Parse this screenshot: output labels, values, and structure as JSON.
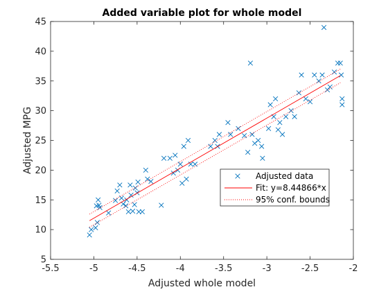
{
  "chart_data": {
    "type": "scatter",
    "title": "Added variable plot for whole model",
    "xlabel": "Adjusted whole model",
    "ylabel": "Adjusted MPG",
    "xlim": [
      -5.5,
      -2
    ],
    "ylim": [
      5,
      45
    ],
    "xticks": [
      -5.5,
      -5,
      -4.5,
      -4,
      -3.5,
      -3,
      -2.5,
      -2
    ],
    "yticks": [
      5,
      10,
      15,
      20,
      25,
      30,
      35,
      40,
      45
    ],
    "xtick_labels": [
      "-5.5",
      "-5",
      "-4.5",
      "-4",
      "-3.5",
      "-3",
      "-2.5",
      "-2"
    ],
    "ytick_labels": [
      "5",
      "10",
      "15",
      "20",
      "25",
      "30",
      "35",
      "40",
      "45"
    ],
    "grid": false,
    "legend_position": "center-right",
    "colors": {
      "data": "#0072BD",
      "fit": "#FF0000",
      "bounds": "#FF0000"
    },
    "series": [
      {
        "name": "Adjusted data",
        "kind": "markers",
        "marker": "x",
        "points": [
          [
            -5.05,
            9.1
          ],
          [
            -5.03,
            10.0
          ],
          [
            -4.98,
            10.3
          ],
          [
            -4.96,
            11.2
          ],
          [
            -4.97,
            14.0
          ],
          [
            -4.95,
            15.0
          ],
          [
            -4.94,
            14.1
          ],
          [
            -4.93,
            13.7
          ],
          [
            -4.83,
            12.8
          ],
          [
            -4.75,
            14.9
          ],
          [
            -4.73,
            16.5
          ],
          [
            -4.7,
            17.5
          ],
          [
            -4.68,
            15.3
          ],
          [
            -4.66,
            14.3
          ],
          [
            -4.63,
            14.0
          ],
          [
            -4.62,
            15.0
          ],
          [
            -4.6,
            13.0
          ],
          [
            -4.58,
            17.5
          ],
          [
            -4.57,
            15.8
          ],
          [
            -4.55,
            13.1
          ],
          [
            -4.53,
            14.2
          ],
          [
            -4.52,
            17.0
          ],
          [
            -4.5,
            16.2
          ],
          [
            -4.49,
            18.0
          ],
          [
            -4.48,
            13.0
          ],
          [
            -4.44,
            13.0
          ],
          [
            -4.4,
            20.0
          ],
          [
            -4.38,
            18.5
          ],
          [
            -4.34,
            18.1
          ],
          [
            -4.22,
            14.1
          ],
          [
            -4.19,
            22.0
          ],
          [
            -4.12,
            22.0
          ],
          [
            -4.08,
            19.5
          ],
          [
            -4.06,
            22.5
          ],
          [
            -4.03,
            20.0
          ],
          [
            -4.0,
            21.0
          ],
          [
            -3.98,
            17.8
          ],
          [
            -3.96,
            24.0
          ],
          [
            -3.93,
            18.5
          ],
          [
            -3.91,
            25.0
          ],
          [
            -3.88,
            21.0
          ],
          [
            -3.83,
            21.0
          ],
          [
            -3.65,
            24.0
          ],
          [
            -3.6,
            25.0
          ],
          [
            -3.57,
            24.0
          ],
          [
            -3.55,
            26.0
          ],
          [
            -3.45,
            28.0
          ],
          [
            -3.42,
            26.0
          ],
          [
            -3.33,
            27.0
          ],
          [
            -3.26,
            25.8
          ],
          [
            -3.22,
            23.0
          ],
          [
            -3.19,
            38.0
          ],
          [
            -3.17,
            26.0
          ],
          [
            -3.14,
            24.5
          ],
          [
            -3.1,
            25.0
          ],
          [
            -3.06,
            24.0
          ],
          [
            -3.05,
            22.0
          ],
          [
            -2.98,
            27.0
          ],
          [
            -2.96,
            31.0
          ],
          [
            -2.92,
            29.0
          ],
          [
            -2.9,
            32.0
          ],
          [
            -2.87,
            26.8
          ],
          [
            -2.85,
            28.0
          ],
          [
            -2.82,
            26.0
          ],
          [
            -2.78,
            29.0
          ],
          [
            -2.72,
            30.0
          ],
          [
            -2.68,
            29.0
          ],
          [
            -2.63,
            33.0
          ],
          [
            -2.6,
            36.0
          ],
          [
            -2.55,
            32.0
          ],
          [
            -2.5,
            31.5
          ],
          [
            -2.45,
            36.0
          ],
          [
            -2.4,
            35.0
          ],
          [
            -2.36,
            36.0
          ],
          [
            -2.34,
            44.0
          ],
          [
            -2.3,
            33.5
          ],
          [
            -2.27,
            34.0
          ],
          [
            -2.22,
            36.5
          ],
          [
            -2.18,
            38.0
          ],
          [
            -2.15,
            38.0
          ],
          [
            -2.14,
            36.0
          ],
          [
            -2.13,
            32.0
          ],
          [
            -2.13,
            31.0
          ]
        ]
      },
      {
        "name": "Fit: y=8.44866*x",
        "kind": "line",
        "x": [
          -5.05,
          -2.15
        ],
        "y": [
          11.5,
          35.9
        ]
      },
      {
        "name": "95% conf. bounds",
        "kind": "dotted",
        "upper": {
          "x": [
            -5.05,
            -2.15
          ],
          "y": [
            12.6,
            37.0
          ]
        },
        "lower": {
          "x": [
            -5.05,
            -2.15
          ],
          "y": [
            10.4,
            34.7
          ]
        }
      }
    ]
  }
}
